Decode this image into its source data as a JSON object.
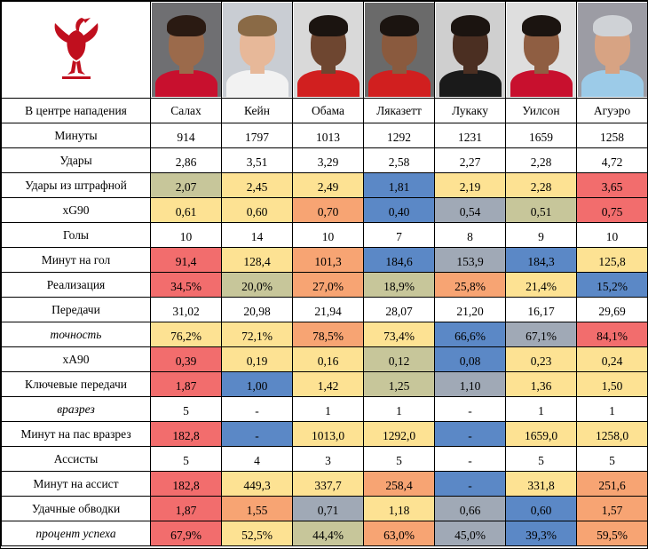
{
  "colors": {
    "red": "#f26d6d",
    "orange": "#f7a473",
    "yellow": "#fde293",
    "khaki": "#c7c69a",
    "grey_blue": "#a0a9b6",
    "blue": "#5b88c6",
    "white": "#ffffff",
    "logo": "#c00f1e"
  },
  "logo": {
    "icon": "liverbird-icon"
  },
  "chart_data": {
    "type": "table",
    "columns": [
      "В центре нападения",
      "Салах",
      "Кейн",
      "Обама",
      "Ляказетт",
      "Лукаку",
      "Уилсон",
      "Агуэро"
    ],
    "players": [
      {
        "name": "Салах",
        "skin": "#9b6a4b",
        "hair": "#2a1a12",
        "shirt": "#c8102e",
        "bg": "#6f6f72"
      },
      {
        "name": "Кейн",
        "skin": "#e7b899",
        "hair": "#8a6a46",
        "shirt": "#f2f2f2",
        "bg": "#c9cdd3"
      },
      {
        "name": "Обама",
        "skin": "#6e4630",
        "hair": "#1b1410",
        "shirt": "#d11f1f",
        "bg": "#d9d9d9"
      },
      {
        "name": "Ляказетт",
        "skin": "#8a5a3e",
        "hair": "#1b1410",
        "shirt": "#d11f1f",
        "bg": "#6a6a6a"
      },
      {
        "name": "Лукаку",
        "skin": "#4b2f22",
        "hair": "#1b1410",
        "shirt": "#1a1a1a",
        "bg": "#cfcfcf"
      },
      {
        "name": "Уилсон",
        "skin": "#8f5e42",
        "hair": "#1b1410",
        "shirt": "#c8102e",
        "bg": "#dedede"
      },
      {
        "name": "Агуэро",
        "skin": "#d7a383",
        "hair": "#cfd2d6",
        "shirt": "#9ccbe8",
        "bg": "#9c9ca4"
      }
    ],
    "rows": [
      {
        "label": "Минуты",
        "italic": false,
        "cells": [
          {
            "v": "914",
            "c": "white"
          },
          {
            "v": "1797",
            "c": "white"
          },
          {
            "v": "1013",
            "c": "white"
          },
          {
            "v": "1292",
            "c": "white"
          },
          {
            "v": "1231",
            "c": "white"
          },
          {
            "v": "1659",
            "c": "white"
          },
          {
            "v": "1258",
            "c": "white"
          }
        ]
      },
      {
        "label": "Удары",
        "italic": false,
        "cells": [
          {
            "v": "2,86",
            "c": "white"
          },
          {
            "v": "3,51",
            "c": "white"
          },
          {
            "v": "3,29",
            "c": "white"
          },
          {
            "v": "2,58",
            "c": "white"
          },
          {
            "v": "2,27",
            "c": "white"
          },
          {
            "v": "2,28",
            "c": "white"
          },
          {
            "v": "4,72",
            "c": "white"
          }
        ]
      },
      {
        "label": "Удары из штрафной",
        "italic": false,
        "cells": [
          {
            "v": "2,07",
            "c": "khaki"
          },
          {
            "v": "2,45",
            "c": "yellow"
          },
          {
            "v": "2,49",
            "c": "yellow"
          },
          {
            "v": "1,81",
            "c": "blue"
          },
          {
            "v": "2,19",
            "c": "yellow"
          },
          {
            "v": "2,28",
            "c": "yellow"
          },
          {
            "v": "3,65",
            "c": "red"
          }
        ]
      },
      {
        "label": "xG90",
        "italic": false,
        "cells": [
          {
            "v": "0,61",
            "c": "yellow"
          },
          {
            "v": "0,60",
            "c": "yellow"
          },
          {
            "v": "0,70",
            "c": "orange"
          },
          {
            "v": "0,40",
            "c": "blue"
          },
          {
            "v": "0,54",
            "c": "grey_blue"
          },
          {
            "v": "0,51",
            "c": "khaki"
          },
          {
            "v": "0,75",
            "c": "red"
          }
        ]
      },
      {
        "label": "Голы",
        "italic": false,
        "cells": [
          {
            "v": "10",
            "c": "white"
          },
          {
            "v": "14",
            "c": "white"
          },
          {
            "v": "10",
            "c": "white"
          },
          {
            "v": "7",
            "c": "white"
          },
          {
            "v": "8",
            "c": "white"
          },
          {
            "v": "9",
            "c": "white"
          },
          {
            "v": "10",
            "c": "white"
          }
        ]
      },
      {
        "label": "Минут на гол",
        "italic": false,
        "cells": [
          {
            "v": "91,4",
            "c": "red"
          },
          {
            "v": "128,4",
            "c": "yellow"
          },
          {
            "v": "101,3",
            "c": "orange"
          },
          {
            "v": "184,6",
            "c": "blue"
          },
          {
            "v": "153,9",
            "c": "grey_blue"
          },
          {
            "v": "184,3",
            "c": "blue"
          },
          {
            "v": "125,8",
            "c": "yellow"
          }
        ]
      },
      {
        "label": "Реализация",
        "italic": false,
        "cells": [
          {
            "v": "34,5%",
            "c": "red"
          },
          {
            "v": "20,0%",
            "c": "khaki"
          },
          {
            "v": "27,0%",
            "c": "orange"
          },
          {
            "v": "18,9%",
            "c": "khaki"
          },
          {
            "v": "25,8%",
            "c": "orange"
          },
          {
            "v": "21,4%",
            "c": "yellow"
          },
          {
            "v": "15,2%",
            "c": "blue"
          }
        ]
      },
      {
        "label": "Передачи",
        "italic": false,
        "cells": [
          {
            "v": "31,02",
            "c": "white"
          },
          {
            "v": "20,98",
            "c": "white"
          },
          {
            "v": "21,94",
            "c": "white"
          },
          {
            "v": "28,07",
            "c": "white"
          },
          {
            "v": "21,20",
            "c": "white"
          },
          {
            "v": "16,17",
            "c": "white"
          },
          {
            "v": "29,69",
            "c": "white"
          }
        ]
      },
      {
        "label": "точность",
        "italic": true,
        "cells": [
          {
            "v": "76,2%",
            "c": "yellow"
          },
          {
            "v": "72,1%",
            "c": "yellow"
          },
          {
            "v": "78,5%",
            "c": "orange"
          },
          {
            "v": "73,4%",
            "c": "yellow"
          },
          {
            "v": "66,6%",
            "c": "blue"
          },
          {
            "v": "67,1%",
            "c": "grey_blue"
          },
          {
            "v": "84,1%",
            "c": "red"
          }
        ]
      },
      {
        "label": "xA90",
        "italic": false,
        "cells": [
          {
            "v": "0,39",
            "c": "red"
          },
          {
            "v": "0,19",
            "c": "yellow"
          },
          {
            "v": "0,16",
            "c": "yellow"
          },
          {
            "v": "0,12",
            "c": "khaki"
          },
          {
            "v": "0,08",
            "c": "blue"
          },
          {
            "v": "0,23",
            "c": "yellow"
          },
          {
            "v": "0,24",
            "c": "yellow"
          }
        ]
      },
      {
        "label": "Ключевые передачи",
        "italic": false,
        "cells": [
          {
            "v": "1,87",
            "c": "red"
          },
          {
            "v": "1,00",
            "c": "blue"
          },
          {
            "v": "1,42",
            "c": "yellow"
          },
          {
            "v": "1,25",
            "c": "khaki"
          },
          {
            "v": "1,10",
            "c": "grey_blue"
          },
          {
            "v": "1,36",
            "c": "yellow"
          },
          {
            "v": "1,50",
            "c": "yellow"
          }
        ]
      },
      {
        "label": "вразрез",
        "italic": true,
        "cells": [
          {
            "v": "5",
            "c": "white"
          },
          {
            "v": "-",
            "c": "white"
          },
          {
            "v": "1",
            "c": "white"
          },
          {
            "v": "1",
            "c": "white"
          },
          {
            "v": "-",
            "c": "white"
          },
          {
            "v": "1",
            "c": "white"
          },
          {
            "v": "1",
            "c": "white"
          }
        ]
      },
      {
        "label": "Минут на пас вразрез",
        "italic": false,
        "cells": [
          {
            "v": "182,8",
            "c": "red"
          },
          {
            "v": "-",
            "c": "blue"
          },
          {
            "v": "1013,0",
            "c": "yellow"
          },
          {
            "v": "1292,0",
            "c": "yellow"
          },
          {
            "v": "-",
            "c": "blue"
          },
          {
            "v": "1659,0",
            "c": "yellow"
          },
          {
            "v": "1258,0",
            "c": "yellow"
          }
        ]
      },
      {
        "label": "Ассисты",
        "italic": false,
        "cells": [
          {
            "v": "5",
            "c": "white"
          },
          {
            "v": "4",
            "c": "white"
          },
          {
            "v": "3",
            "c": "white"
          },
          {
            "v": "5",
            "c": "white"
          },
          {
            "v": "-",
            "c": "white"
          },
          {
            "v": "5",
            "c": "white"
          },
          {
            "v": "5",
            "c": "white"
          }
        ]
      },
      {
        "label": "Минут на ассист",
        "italic": false,
        "cells": [
          {
            "v": "182,8",
            "c": "red"
          },
          {
            "v": "449,3",
            "c": "yellow"
          },
          {
            "v": "337,7",
            "c": "yellow"
          },
          {
            "v": "258,4",
            "c": "orange"
          },
          {
            "v": "-",
            "c": "blue"
          },
          {
            "v": "331,8",
            "c": "yellow"
          },
          {
            "v": "251,6",
            "c": "orange"
          }
        ]
      },
      {
        "label": "Удачные обводки",
        "italic": false,
        "cells": [
          {
            "v": "1,87",
            "c": "red"
          },
          {
            "v": "1,55",
            "c": "orange"
          },
          {
            "v": "0,71",
            "c": "grey_blue"
          },
          {
            "v": "1,18",
            "c": "yellow"
          },
          {
            "v": "0,66",
            "c": "grey_blue"
          },
          {
            "v": "0,60",
            "c": "blue"
          },
          {
            "v": "1,57",
            "c": "orange"
          }
        ]
      },
      {
        "label": "процент успеха",
        "italic": true,
        "cells": [
          {
            "v": "67,9%",
            "c": "red"
          },
          {
            "v": "52,5%",
            "c": "yellow"
          },
          {
            "v": "44,4%",
            "c": "khaki"
          },
          {
            "v": "63,0%",
            "c": "orange"
          },
          {
            "v": "45,0%",
            "c": "grey_blue"
          },
          {
            "v": "39,3%",
            "c": "blue"
          },
          {
            "v": "59,5%",
            "c": "orange"
          }
        ]
      }
    ]
  }
}
